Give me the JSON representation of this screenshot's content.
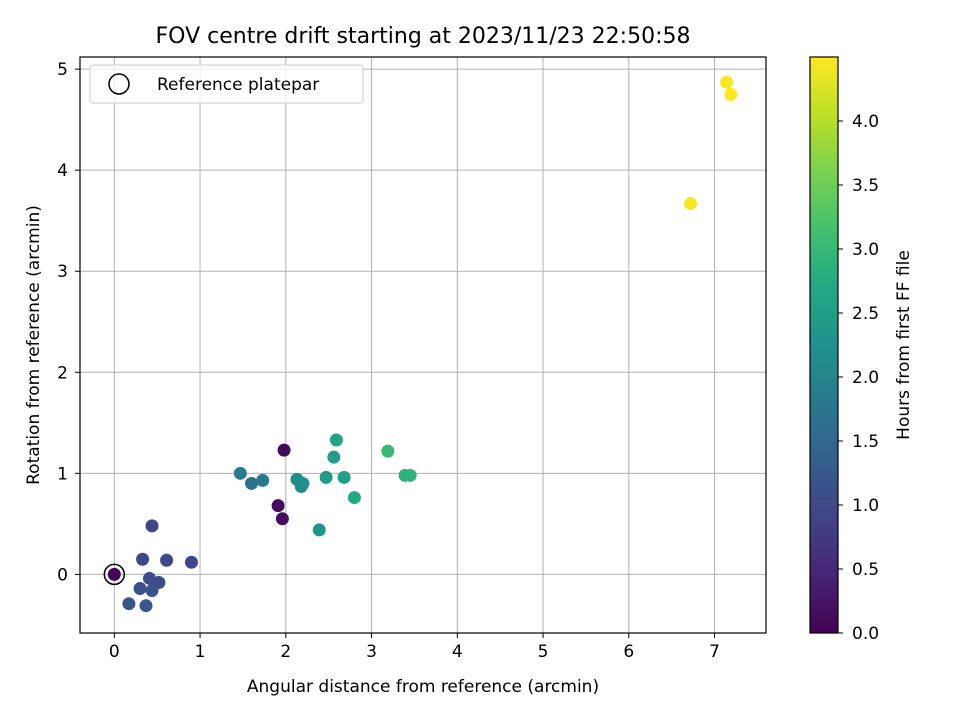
{
  "chart_data": {
    "type": "scatter",
    "title": "FOV centre drift starting at 2023/11/23 22:50:58",
    "xlabel": "Angular distance from reference (arcmin)",
    "ylabel": "Rotation from reference (arcmin)",
    "xlim": [
      -0.4,
      7.6
    ],
    "ylim": [
      -0.58,
      5.12
    ],
    "xticks": [
      0,
      1,
      2,
      3,
      4,
      5,
      6,
      7
    ],
    "yticks": [
      0,
      1,
      2,
      3,
      4,
      5
    ],
    "xtick_labels": [
      "0",
      "1",
      "2",
      "3",
      "4",
      "5",
      "6",
      "7"
    ],
    "ytick_labels": [
      "0",
      "1",
      "2",
      "3",
      "4",
      "5"
    ],
    "grid": true,
    "legend": {
      "position": "top-left",
      "entries": [
        "Reference platepar"
      ]
    },
    "colorbar": {
      "label": "Hours from first FF file",
      "colormap": "viridis",
      "range": [
        0,
        4.5
      ],
      "ticks": [
        0.0,
        0.5,
        1.0,
        1.5,
        2.0,
        2.5,
        3.0,
        3.5,
        4.0
      ],
      "tick_labels": [
        "0.0",
        "0.5",
        "1.0",
        "1.5",
        "2.0",
        "2.5",
        "3.0",
        "3.5",
        "4.0"
      ]
    },
    "reference_point": {
      "x": 0,
      "y": 0
    },
    "points": [
      {
        "x": 0.0,
        "y": 0.0,
        "hours": 0.05
      },
      {
        "x": 1.98,
        "y": 1.23,
        "hours": 0.1
      },
      {
        "x": 1.91,
        "y": 0.68,
        "hours": 0.12
      },
      {
        "x": 1.96,
        "y": 0.55,
        "hours": 0.15
      },
      {
        "x": 0.44,
        "y": 0.48,
        "hours": 0.95
      },
      {
        "x": 0.9,
        "y": 0.12,
        "hours": 0.95
      },
      {
        "x": 0.61,
        "y": 0.14,
        "hours": 1.0
      },
      {
        "x": 0.33,
        "y": 0.15,
        "hours": 1.0
      },
      {
        "x": 0.41,
        "y": -0.04,
        "hours": 1.05
      },
      {
        "x": 0.52,
        "y": -0.08,
        "hours": 1.05
      },
      {
        "x": 0.3,
        "y": -0.14,
        "hours": 1.1
      },
      {
        "x": 0.44,
        "y": -0.16,
        "hours": 1.15
      },
      {
        "x": 0.17,
        "y": -0.29,
        "hours": 1.2
      },
      {
        "x": 0.37,
        "y": -0.31,
        "hours": 1.2
      },
      {
        "x": 1.6,
        "y": 0.9,
        "hours": 1.7
      },
      {
        "x": 1.73,
        "y": 0.93,
        "hours": 1.8
      },
      {
        "x": 1.47,
        "y": 1.0,
        "hours": 1.85
      },
      {
        "x": 2.13,
        "y": 0.94,
        "hours": 2.2
      },
      {
        "x": 2.18,
        "y": 0.87,
        "hours": 2.2
      },
      {
        "x": 2.2,
        "y": 0.9,
        "hours": 2.25
      },
      {
        "x": 2.39,
        "y": 0.44,
        "hours": 2.3
      },
      {
        "x": 2.47,
        "y": 0.96,
        "hours": 2.45
      },
      {
        "x": 2.56,
        "y": 1.16,
        "hours": 2.5
      },
      {
        "x": 2.68,
        "y": 0.96,
        "hours": 2.55
      },
      {
        "x": 2.59,
        "y": 1.33,
        "hours": 2.6
      },
      {
        "x": 2.8,
        "y": 0.76,
        "hours": 2.7
      },
      {
        "x": 3.39,
        "y": 0.98,
        "hours": 2.9
      },
      {
        "x": 3.45,
        "y": 0.98,
        "hours": 2.9
      },
      {
        "x": 3.19,
        "y": 1.22,
        "hours": 3.0
      },
      {
        "x": 6.72,
        "y": 3.67,
        "hours": 4.45
      },
      {
        "x": 7.14,
        "y": 4.87,
        "hours": 4.45
      },
      {
        "x": 7.19,
        "y": 4.75,
        "hours": 4.48
      }
    ]
  }
}
